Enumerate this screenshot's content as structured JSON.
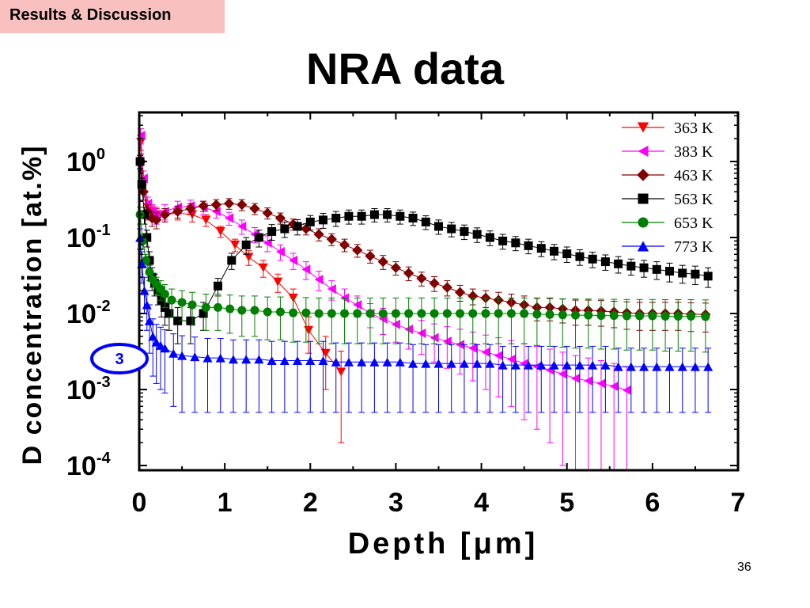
{
  "slide": {
    "section": "Results & Discussion",
    "title": "NRA data",
    "page_number": "36"
  },
  "chart_data": {
    "type": "scatter",
    "title": "",
    "xlabel": "Depth [μm]",
    "ylabel": "D concentration [at.%]",
    "xlim": [
      0,
      7
    ],
    "ylim": [
      0.0001,
      5
    ],
    "y_scale": "log",
    "x_ticks": [
      "0",
      "1",
      "2",
      "3",
      "4",
      "5",
      "6",
      "7"
    ],
    "y_ticks": [
      {
        "value": 1,
        "base": "10",
        "exp": "0"
      },
      {
        "value": 0.1,
        "base": "10",
        "exp": "-1"
      },
      {
        "value": 0.01,
        "base": "10",
        "exp": "-2"
      },
      {
        "value": 0.001,
        "base": "10",
        "exp": "-3"
      },
      {
        "value": 0.0001,
        "base": "10",
        "exp": "-4"
      }
    ],
    "legend_position": "top-right",
    "annotation": {
      "text": "3",
      "color": "#0000ff"
    },
    "series": [
      {
        "name": "363 K",
        "color": "#ff0000",
        "marker": "triangle-down",
        "x": [
          0.02,
          0.05,
          0.1,
          0.15,
          0.2,
          0.3,
          0.45,
          0.62,
          0.78,
          0.95,
          1.12,
          1.28,
          1.45,
          1.62,
          1.8,
          1.98,
          2.18,
          2.36
        ],
        "y": [
          1.8,
          0.5,
          0.25,
          0.22,
          0.2,
          0.2,
          0.21,
          0.2,
          0.17,
          0.12,
          0.08,
          0.055,
          0.04,
          0.026,
          0.016,
          0.006,
          0.003,
          0.0017
        ],
        "err": [
          0.4,
          0.12,
          0.05,
          0.04,
          0.04,
          0.04,
          0.04,
          0.04,
          0.03,
          0.02,
          0.015,
          0.012,
          0.01,
          0.007,
          0.005,
          0.003,
          0.002,
          0.0015
        ]
      },
      {
        "name": "383 K",
        "color": "#ff00ff",
        "marker": "triangle-left",
        "x": [
          0.02,
          0.05,
          0.1,
          0.15,
          0.2,
          0.3,
          0.45,
          0.6,
          0.75,
          0.9,
          1.05,
          1.2,
          1.35,
          1.5,
          1.65,
          1.8,
          1.95,
          2.1,
          2.25,
          2.4,
          2.55,
          2.7,
          2.85,
          3.0,
          3.15,
          3.3,
          3.45,
          3.6,
          3.75,
          3.9,
          4.05,
          4.2,
          4.35,
          4.5,
          4.65,
          4.8,
          4.95,
          5.1,
          5.25,
          5.4,
          5.55,
          5.7
        ],
        "y": [
          2.2,
          0.6,
          0.28,
          0.22,
          0.2,
          0.22,
          0.25,
          0.26,
          0.25,
          0.22,
          0.18,
          0.14,
          0.11,
          0.085,
          0.065,
          0.05,
          0.038,
          0.028,
          0.021,
          0.016,
          0.013,
          0.01,
          0.0085,
          0.0072,
          0.0062,
          0.0055,
          0.0048,
          0.0043,
          0.0039,
          0.0035,
          0.0031,
          0.0028,
          0.0025,
          0.0022,
          0.002,
          0.0018,
          0.0016,
          0.0014,
          0.0013,
          0.0012,
          0.0011,
          0.00098
        ],
        "err": [
          0.5,
          0.15,
          0.06,
          0.05,
          0.05,
          0.05,
          0.05,
          0.05,
          0.05,
          0.04,
          0.035,
          0.03,
          0.025,
          0.02,
          0.015,
          0.012,
          0.01,
          0.008,
          0.006,
          0.005,
          0.004,
          0.0035,
          0.0032,
          0.003,
          0.0028,
          0.0026,
          0.0025,
          0.0024,
          0.0023,
          0.0022,
          0.0021,
          0.002,
          0.0019,
          0.0018,
          0.0017,
          0.0016,
          0.0015,
          0.0014,
          0.0013,
          0.0012,
          0.0011,
          0.001
        ]
      },
      {
        "name": "463 K",
        "color": "#800000",
        "marker": "diamond",
        "x": [
          0.02,
          0.05,
          0.1,
          0.15,
          0.2,
          0.3,
          0.45,
          0.6,
          0.75,
          0.9,
          1.05,
          1.2,
          1.35,
          1.5,
          1.65,
          1.8,
          1.95,
          2.1,
          2.25,
          2.4,
          2.55,
          2.7,
          2.85,
          3.0,
          3.15,
          3.3,
          3.45,
          3.6,
          3.75,
          3.9,
          4.05,
          4.2,
          4.35,
          4.5,
          4.65,
          4.8,
          4.95,
          5.1,
          5.25,
          5.4,
          5.55,
          5.7,
          5.85,
          6.0,
          6.15,
          6.3,
          6.45,
          6.62
        ],
        "y": [
          1.0,
          0.4,
          0.22,
          0.18,
          0.17,
          0.2,
          0.22,
          0.24,
          0.26,
          0.27,
          0.28,
          0.27,
          0.24,
          0.21,
          0.18,
          0.15,
          0.13,
          0.11,
          0.095,
          0.08,
          0.068,
          0.057,
          0.048,
          0.04,
          0.034,
          0.029,
          0.025,
          0.022,
          0.019,
          0.017,
          0.016,
          0.015,
          0.014,
          0.013,
          0.012,
          0.012,
          0.0115,
          0.011,
          0.011,
          0.0108,
          0.0105,
          0.0102,
          0.01,
          0.01,
          0.01,
          0.01,
          0.0098,
          0.0097
        ],
        "err": [
          0.25,
          0.09,
          0.05,
          0.04,
          0.04,
          0.04,
          0.04,
          0.04,
          0.04,
          0.045,
          0.045,
          0.045,
          0.04,
          0.035,
          0.03,
          0.025,
          0.022,
          0.02,
          0.017,
          0.015,
          0.013,
          0.011,
          0.01,
          0.008,
          0.007,
          0.006,
          0.0055,
          0.005,
          0.0045,
          0.004,
          0.004,
          0.004,
          0.004,
          0.004,
          0.004,
          0.004,
          0.004,
          0.004,
          0.004,
          0.004,
          0.004,
          0.004,
          0.004,
          0.004,
          0.004,
          0.004,
          0.004,
          0.004
        ]
      },
      {
        "name": "563 K",
        "color": "#000000",
        "marker": "square",
        "x": [
          0.01,
          0.03,
          0.06,
          0.09,
          0.12,
          0.15,
          0.18,
          0.22,
          0.26,
          0.3,
          0.35,
          0.45,
          0.6,
          0.75,
          0.92,
          1.08,
          1.25,
          1.4,
          1.55,
          1.7,
          1.85,
          2.0,
          2.15,
          2.3,
          2.45,
          2.6,
          2.75,
          2.9,
          3.05,
          3.2,
          3.35,
          3.5,
          3.65,
          3.8,
          3.95,
          4.1,
          4.25,
          4.4,
          4.55,
          4.7,
          4.85,
          5.0,
          5.15,
          5.3,
          5.45,
          5.6,
          5.75,
          5.9,
          6.05,
          6.2,
          6.35,
          6.5,
          6.65
        ],
        "y": [
          1.0,
          0.5,
          0.2,
          0.1,
          0.05,
          0.03,
          0.025,
          0.02,
          0.015,
          0.012,
          0.01,
          0.008,
          0.008,
          0.01,
          0.023,
          0.05,
          0.08,
          0.1,
          0.12,
          0.13,
          0.14,
          0.16,
          0.17,
          0.18,
          0.19,
          0.19,
          0.2,
          0.2,
          0.19,
          0.18,
          0.16,
          0.14,
          0.13,
          0.12,
          0.11,
          0.1,
          0.09,
          0.085,
          0.078,
          0.072,
          0.066,
          0.061,
          0.056,
          0.052,
          0.048,
          0.045,
          0.042,
          0.04,
          0.038,
          0.036,
          0.034,
          0.033,
          0.031
        ],
        "err": [
          0.2,
          0.1,
          0.05,
          0.025,
          0.015,
          0.01,
          0.008,
          0.007,
          0.006,
          0.005,
          0.004,
          0.004,
          0.004,
          0.004,
          0.006,
          0.012,
          0.02,
          0.025,
          0.028,
          0.03,
          0.032,
          0.035,
          0.038,
          0.04,
          0.04,
          0.04,
          0.04,
          0.04,
          0.04,
          0.036,
          0.033,
          0.03,
          0.028,
          0.026,
          0.024,
          0.022,
          0.02,
          0.018,
          0.017,
          0.016,
          0.015,
          0.014,
          0.013,
          0.012,
          0.011,
          0.011,
          0.01,
          0.01,
          0.01,
          0.01,
          0.009,
          0.009,
          0.009
        ]
      },
      {
        "name": "653 K",
        "color": "#008000",
        "marker": "circle",
        "x": [
          0.01,
          0.04,
          0.08,
          0.12,
          0.16,
          0.2,
          0.25,
          0.3,
          0.38,
          0.5,
          0.62,
          0.78,
          0.92,
          1.06,
          1.2,
          1.35,
          1.5,
          1.65,
          1.8,
          1.95,
          2.1,
          2.25,
          2.4,
          2.55,
          2.7,
          2.85,
          3.0,
          3.15,
          3.3,
          3.45,
          3.6,
          3.75,
          3.9,
          4.05,
          4.2,
          4.35,
          4.5,
          4.65,
          4.8,
          4.95,
          5.1,
          5.25,
          5.4,
          5.55,
          5.7,
          5.85,
          6.0,
          6.15,
          6.3,
          6.45,
          6.62
        ],
        "y": [
          0.2,
          0.09,
          0.05,
          0.035,
          0.028,
          0.024,
          0.021,
          0.018,
          0.015,
          0.014,
          0.013,
          0.012,
          0.012,
          0.0115,
          0.011,
          0.011,
          0.0105,
          0.0105,
          0.0102,
          0.0102,
          0.01,
          0.01,
          0.01,
          0.01,
          0.01,
          0.01,
          0.01,
          0.01,
          0.01,
          0.01,
          0.01,
          0.01,
          0.01,
          0.01,
          0.01,
          0.01,
          0.01,
          0.0098,
          0.0097,
          0.0096,
          0.0095,
          0.0095,
          0.0094,
          0.0094,
          0.0093,
          0.0093,
          0.0093,
          0.0092,
          0.0092,
          0.0092,
          0.0091
        ],
        "err": [
          0.05,
          0.02,
          0.01,
          0.008,
          0.006,
          0.006,
          0.006,
          0.006,
          0.006,
          0.006,
          0.006,
          0.006,
          0.006,
          0.006,
          0.006,
          0.006,
          0.006,
          0.006,
          0.006,
          0.006,
          0.006,
          0.006,
          0.006,
          0.006,
          0.006,
          0.006,
          0.006,
          0.006,
          0.006,
          0.006,
          0.006,
          0.006,
          0.006,
          0.006,
          0.006,
          0.006,
          0.006,
          0.006,
          0.006,
          0.006,
          0.006,
          0.006,
          0.006,
          0.006,
          0.006,
          0.006,
          0.006,
          0.006,
          0.006,
          0.006,
          0.006
        ]
      },
      {
        "name": "773 K",
        "color": "#0000ff",
        "marker": "triangle-up",
        "x": [
          0.01,
          0.03,
          0.06,
          0.09,
          0.12,
          0.16,
          0.2,
          0.25,
          0.3,
          0.4,
          0.5,
          0.65,
          0.8,
          0.95,
          1.1,
          1.25,
          1.4,
          1.55,
          1.7,
          1.85,
          2.0,
          2.15,
          2.3,
          2.45,
          2.6,
          2.75,
          2.9,
          3.05,
          3.2,
          3.35,
          3.5,
          3.65,
          3.8,
          3.95,
          4.1,
          4.25,
          4.4,
          4.55,
          4.7,
          4.85,
          5.0,
          5.15,
          5.3,
          5.45,
          5.6,
          5.75,
          5.9,
          6.05,
          6.2,
          6.35,
          6.5,
          6.65
        ],
        "y": [
          0.1,
          0.045,
          0.02,
          0.013,
          0.008,
          0.005,
          0.0042,
          0.0038,
          0.0035,
          0.003,
          0.0028,
          0.0027,
          0.0026,
          0.0026,
          0.0025,
          0.0025,
          0.0025,
          0.0024,
          0.0024,
          0.0024,
          0.0024,
          0.0024,
          0.0023,
          0.0023,
          0.0023,
          0.0023,
          0.0023,
          0.0023,
          0.0022,
          0.0022,
          0.0022,
          0.0022,
          0.0022,
          0.0022,
          0.0022,
          0.0021,
          0.0021,
          0.0021,
          0.0021,
          0.0021,
          0.0021,
          0.0021,
          0.0021,
          0.0021,
          0.002,
          0.002,
          0.002,
          0.002,
          0.002,
          0.002,
          0.002,
          0.002
        ],
        "err": [
          0.03,
          0.02,
          0.01,
          0.007,
          0.005,
          0.0035,
          0.003,
          0.0028,
          0.0026,
          0.0024,
          0.0023,
          0.0022,
          0.0021,
          0.0021,
          0.002,
          0.002,
          0.002,
          0.0019,
          0.0019,
          0.0019,
          0.0019,
          0.0019,
          0.0018,
          0.0018,
          0.0018,
          0.0018,
          0.0018,
          0.0018,
          0.0017,
          0.0017,
          0.0017,
          0.0017,
          0.0017,
          0.0017,
          0.0017,
          0.0016,
          0.0016,
          0.0016,
          0.0016,
          0.0016,
          0.0016,
          0.0016,
          0.0016,
          0.0016,
          0.0015,
          0.0015,
          0.0015,
          0.0015,
          0.0015,
          0.0015,
          0.0015,
          0.0015
        ]
      }
    ]
  }
}
